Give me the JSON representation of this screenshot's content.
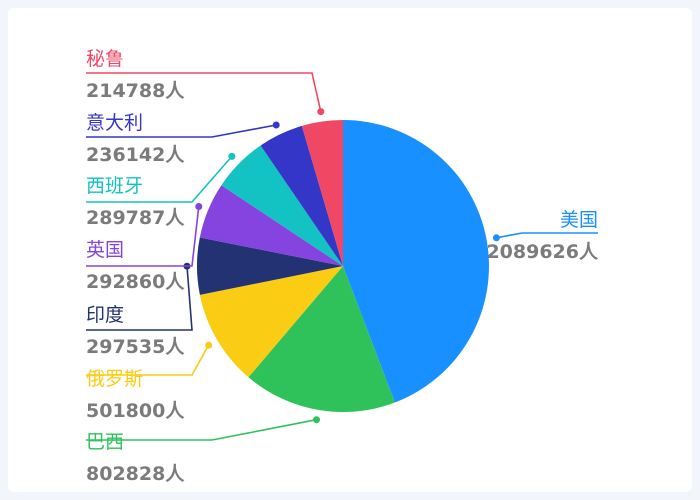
{
  "chart_data": {
    "type": "pie",
    "unit": "人",
    "start_angle_deg": 0,
    "direction": "clockwise",
    "slices": [
      {
        "name": "美国",
        "value": 2089626,
        "value_label": "2089626人",
        "color": "#1890ff"
      },
      {
        "name": "巴西",
        "value": 802828,
        "value_label": "802828人",
        "color": "#2fc25b"
      },
      {
        "name": "俄罗斯",
        "value": 501800,
        "value_label": "501800人",
        "color": "#facc14"
      },
      {
        "name": "印度",
        "value": 297535,
        "value_label": "297535人",
        "color": "#223273"
      },
      {
        "name": "英国",
        "value": 292860,
        "value_label": "292860人",
        "color": "#8543e0"
      },
      {
        "name": "西班牙",
        "value": 289787,
        "value_label": "289787人",
        "color": "#13c2c2"
      },
      {
        "name": "意大利",
        "value": 236142,
        "value_label": "236142人",
        "color": "#3436c7"
      },
      {
        "name": "秘鲁",
        "value": 214788,
        "value_label": "214788人",
        "color": "#f04864"
      }
    ]
  }
}
